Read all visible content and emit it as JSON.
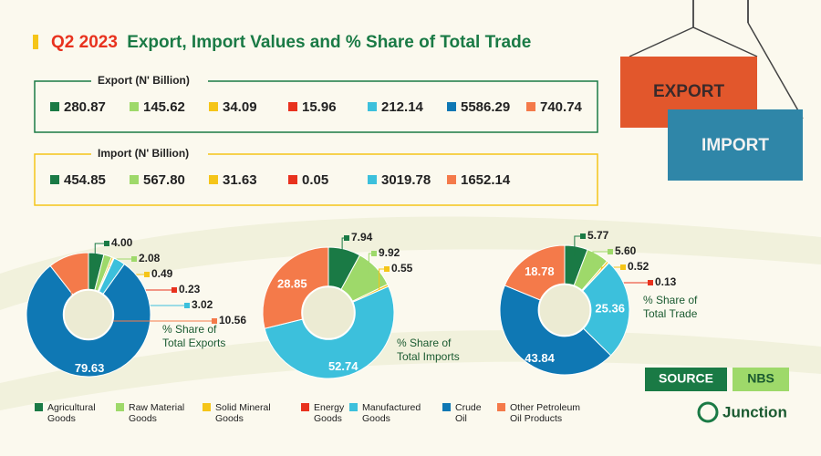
{
  "title_prefix": "Q2 2023",
  "title": "Export, Import Values and % Share of Total Trade",
  "containers": [
    "EXPORT",
    "IMPORT"
  ],
  "export": {
    "label": "Export (N' Billion)",
    "values": [
      280.87,
      145.62,
      34.09,
      15.96,
      212.14,
      5586.29,
      740.74
    ],
    "value_labels": [
      "280.87",
      "145.62",
      "34.09",
      "15.96",
      "212.14",
      "5586.29",
      "740.74"
    ],
    "colors": [
      "#1a7a45",
      "#9ed96a",
      "#f5c518",
      "#e8321e",
      "#3cc0dc",
      "#0f78b4",
      "#f47a4a"
    ]
  },
  "import": {
    "label": "Import (N' Billion)",
    "values": [
      454.85,
      567.8,
      31.63,
      0.05,
      3019.78,
      1652.14
    ],
    "value_labels": [
      "454.85",
      "567.80",
      "31.63",
      "0.05",
      "3019.78",
      "1652.14"
    ],
    "colors": [
      "#1a7a45",
      "#9ed96a",
      "#f5c518",
      "#e8321e",
      "#3cc0dc",
      "#f47a4a"
    ]
  },
  "chart_data": [
    {
      "type": "pie",
      "label": [
        "% Share of",
        "Total Exports"
      ],
      "values": [
        4.0,
        2.08,
        0.49,
        0.23,
        3.02,
        79.63,
        10.56
      ],
      "value_labels": [
        "4.00",
        "2.08",
        "0.49",
        "0.23",
        "3.02",
        "79.63",
        "10.56"
      ],
      "colors": [
        "#1a7a45",
        "#9ed96a",
        "#f5c518",
        "#e8321e",
        "#3cc0dc",
        "#0f78b4",
        "#f47a4a"
      ]
    },
    {
      "type": "pie",
      "label": [
        "% Share of",
        "Total Imports"
      ],
      "values": [
        7.94,
        9.92,
        0.55,
        52.74,
        28.85
      ],
      "value_labels": [
        "7.94",
        "9.92",
        "0.55",
        "52.74",
        "28.85"
      ],
      "colors": [
        "#1a7a45",
        "#9ed96a",
        "#f5c518",
        "#3cc0dc",
        "#f47a4a"
      ]
    },
    {
      "type": "pie",
      "label": [
        "% Share of",
        "Total Trade"
      ],
      "values": [
        5.77,
        5.6,
        0.52,
        0.13,
        25.36,
        43.84,
        18.78
      ],
      "value_labels": [
        "5.77",
        "5.60",
        "0.52",
        "0.13",
        "25.36",
        "43.84",
        "18.78"
      ],
      "colors": [
        "#1a7a45",
        "#9ed96a",
        "#f5c518",
        "#e8321e",
        "#3cc0dc",
        "#0f78b4",
        "#f47a4a"
      ]
    }
  ],
  "legend": {
    "categories": [
      [
        "Agricultural",
        "Goods"
      ],
      [
        "Raw Material",
        "Goods"
      ],
      [
        "Solid Mineral",
        "Goods"
      ],
      [
        "Energy",
        "Goods"
      ],
      [
        "Manufactured",
        "Goods"
      ],
      [
        "Crude",
        "Oil"
      ],
      [
        "Other Petroleum",
        "Oil Products"
      ]
    ],
    "colors": [
      "#1a7a45",
      "#9ed96a",
      "#f5c518",
      "#e8321e",
      "#3cc0dc",
      "#0f78b4",
      "#f47a4a"
    ]
  },
  "source": {
    "label": "SOURCE",
    "value": "NBS"
  },
  "brand": "Junction"
}
